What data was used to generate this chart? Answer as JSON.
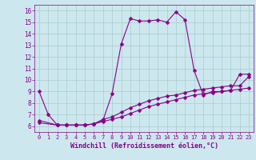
{
  "xlabel": "Windchill (Refroidissement éolien,°C)",
  "bg_color": "#cce8ee",
  "grid_color": "#aacccc",
  "line_color": "#880088",
  "ylim": [
    5.5,
    16.5
  ],
  "xlim": [
    -0.5,
    23.5
  ],
  "yticks": [
    6,
    7,
    8,
    9,
    10,
    11,
    12,
    13,
    14,
    15,
    16
  ],
  "xticks": [
    0,
    1,
    2,
    3,
    4,
    5,
    6,
    7,
    8,
    9,
    10,
    11,
    12,
    13,
    14,
    15,
    16,
    17,
    18,
    19,
    20,
    21,
    22,
    23
  ],
  "series1_x": [
    0,
    1,
    2,
    3,
    4,
    5,
    6,
    7,
    8,
    9,
    10,
    11,
    12,
    13,
    14,
    15,
    16,
    17,
    18,
    19,
    20,
    21,
    22,
    23
  ],
  "series1_y": [
    9.0,
    7.0,
    6.1,
    6.1,
    6.1,
    6.1,
    6.2,
    6.5,
    8.8,
    13.1,
    15.3,
    15.1,
    15.1,
    15.2,
    15.0,
    15.9,
    15.2,
    10.8,
    8.7,
    9.0,
    9.0,
    9.1,
    10.5,
    10.5
  ],
  "series2_x": [
    0,
    2,
    3,
    4,
    5,
    6,
    7,
    8,
    9,
    10,
    11,
    12,
    13,
    14,
    15,
    16,
    17,
    18,
    19,
    20,
    21,
    22,
    23
  ],
  "series2_y": [
    6.5,
    6.1,
    6.1,
    6.1,
    6.1,
    6.2,
    6.6,
    6.8,
    7.2,
    7.6,
    7.9,
    8.2,
    8.4,
    8.6,
    8.7,
    8.9,
    9.1,
    9.2,
    9.3,
    9.4,
    9.5,
    9.5,
    10.3
  ],
  "series3_x": [
    0,
    2,
    3,
    4,
    5,
    6,
    7,
    8,
    9,
    10,
    11,
    12,
    13,
    14,
    15,
    16,
    17,
    18,
    19,
    20,
    21,
    22,
    23
  ],
  "series3_y": [
    6.3,
    6.1,
    6.1,
    6.1,
    6.1,
    6.2,
    6.4,
    6.6,
    6.8,
    7.1,
    7.4,
    7.7,
    7.9,
    8.1,
    8.3,
    8.5,
    8.7,
    8.8,
    8.9,
    9.0,
    9.1,
    9.2,
    9.3
  ],
  "marker_size": 2.5,
  "line_width": 0.8
}
